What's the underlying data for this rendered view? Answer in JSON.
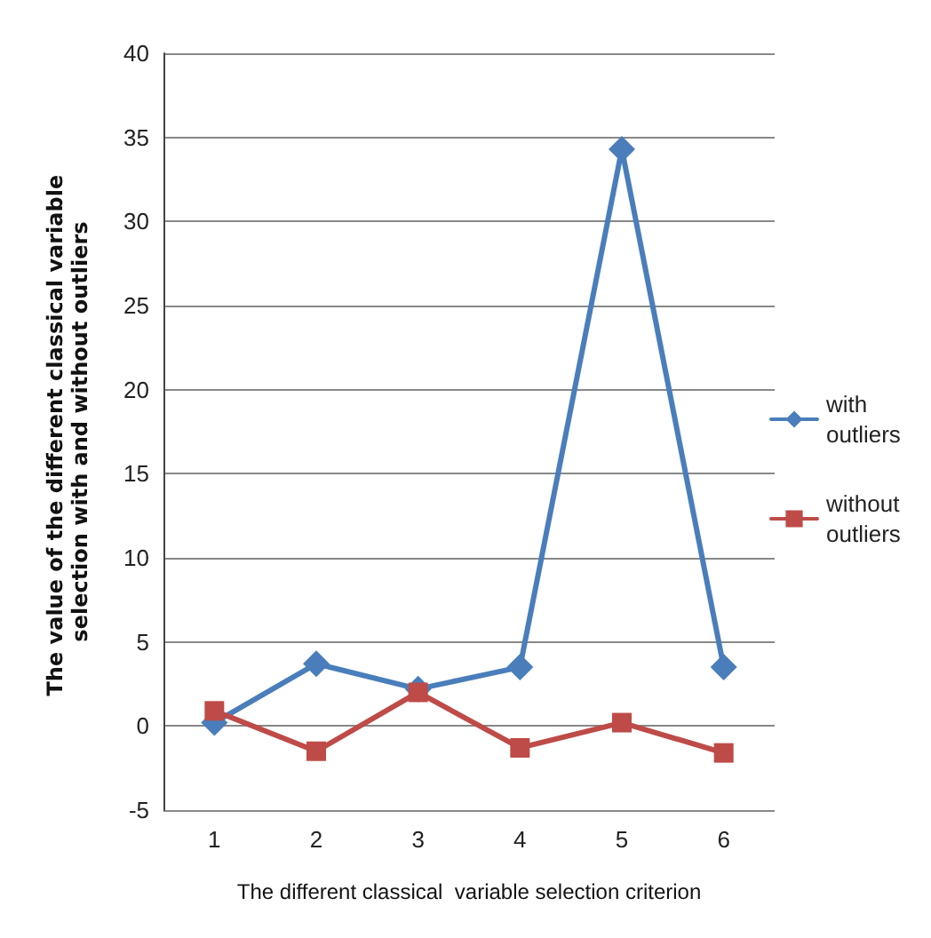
{
  "chart_data": {
    "type": "line",
    "xlabel": "The different classical  variable selection criterion",
    "ylabel": "The value of the different classical variable selection with and without outliers",
    "categories": [
      "1",
      "2",
      "3",
      "4",
      "5",
      "6"
    ],
    "series": [
      {
        "name": "with outliers",
        "color": "#4a7ebb",
        "marker": "diamond",
        "values": [
          0.2,
          3.7,
          2.2,
          3.5,
          34.3,
          3.5
        ]
      },
      {
        "name": "without outliers",
        "color": "#be4b48",
        "marker": "square",
        "values": [
          0.9,
          -1.5,
          2.0,
          -1.3,
          0.2,
          -1.6
        ]
      }
    ],
    "ylim": [
      -5,
      40
    ],
    "yticks": [
      -5,
      0,
      5,
      10,
      15,
      20,
      25,
      30,
      35,
      40
    ],
    "grid": "y",
    "legend": "right",
    "line_style": "solid"
  }
}
